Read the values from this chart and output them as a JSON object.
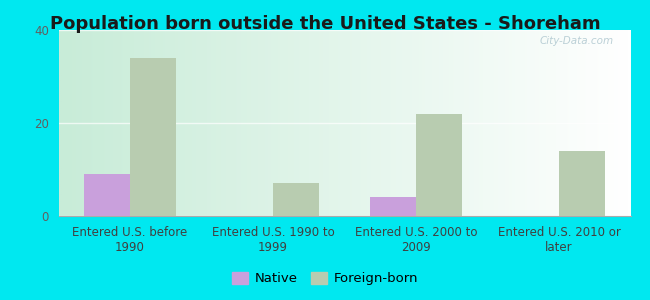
{
  "title": "Population born outside the United States - Shoreham",
  "categories": [
    "Entered U.S. before\n1990",
    "Entered U.S. 1990 to\n1999",
    "Entered U.S. 2000 to\n2009",
    "Entered U.S. 2010 or\nlater"
  ],
  "native_values": [
    9,
    0,
    4,
    0
  ],
  "foreign_values": [
    34,
    7,
    22,
    14
  ],
  "native_color": "#c9a0dc",
  "foreign_color": "#b8ccb0",
  "background_outer": "#00e8f0",
  "ylim": [
    0,
    40
  ],
  "yticks": [
    0,
    20,
    40
  ],
  "bar_width": 0.32,
  "title_fontsize": 13,
  "tick_fontsize": 8.5,
  "legend_fontsize": 9.5,
  "watermark": "City-Data.com"
}
